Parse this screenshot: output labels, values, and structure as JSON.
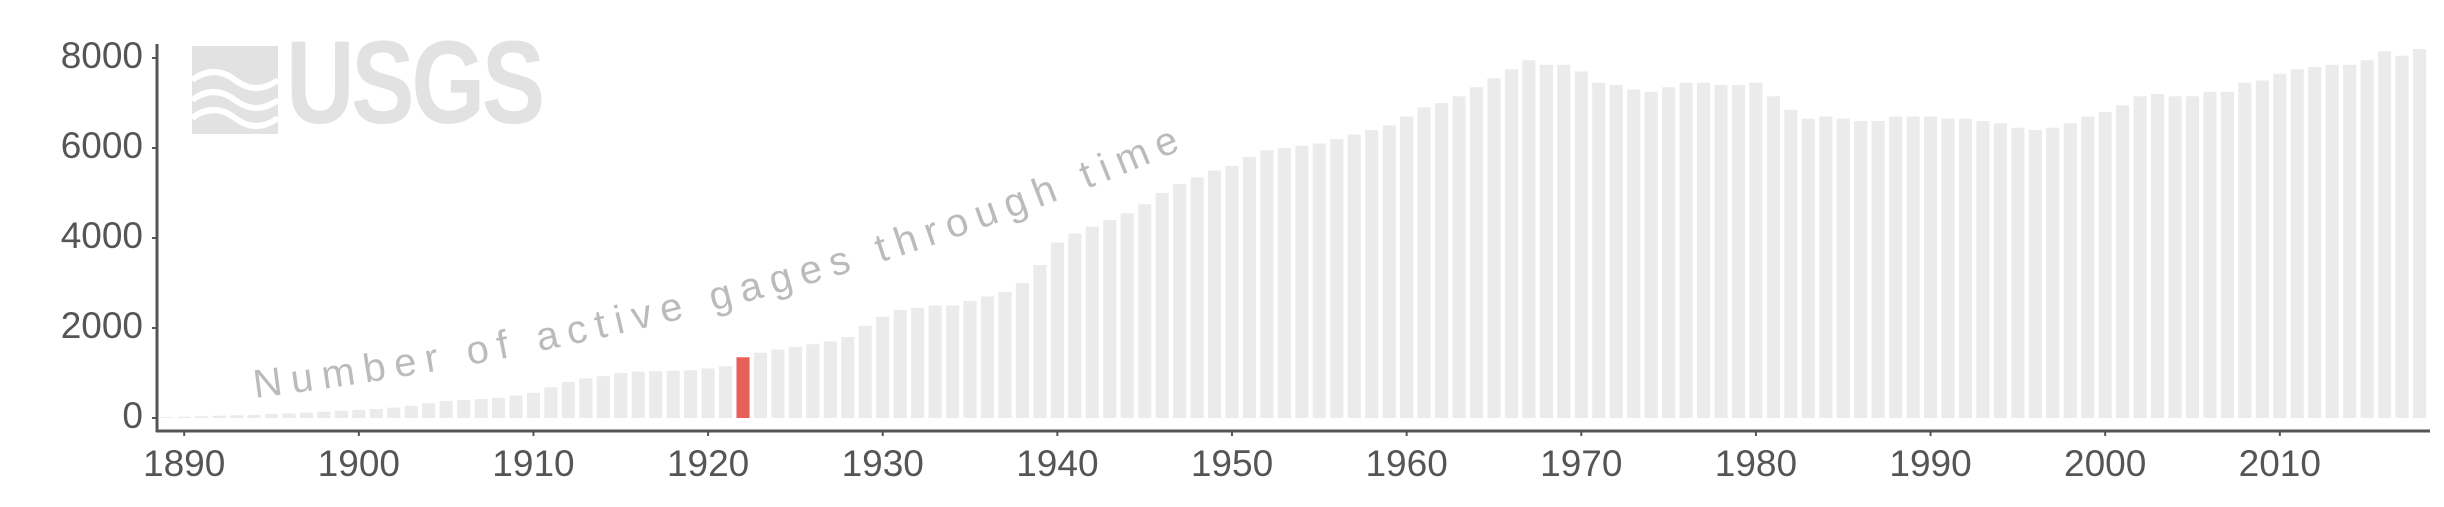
{
  "chart_data": {
    "type": "bar",
    "logo": "USGS",
    "annotation": "Number of active gages through time",
    "x": [
      1889,
      1890,
      1891,
      1892,
      1893,
      1894,
      1895,
      1896,
      1897,
      1898,
      1899,
      1900,
      1901,
      1902,
      1903,
      1904,
      1905,
      1906,
      1907,
      1908,
      1909,
      1910,
      1911,
      1912,
      1913,
      1914,
      1915,
      1916,
      1917,
      1918,
      1919,
      1920,
      1921,
      1922,
      1923,
      1924,
      1925,
      1926,
      1927,
      1928,
      1929,
      1930,
      1931,
      1932,
      1933,
      1934,
      1935,
      1936,
      1937,
      1938,
      1939,
      1940,
      1941,
      1942,
      1943,
      1944,
      1945,
      1946,
      1947,
      1948,
      1949,
      1950,
      1951,
      1952,
      1953,
      1954,
      1955,
      1956,
      1957,
      1958,
      1959,
      1960,
      1961,
      1962,
      1963,
      1964,
      1965,
      1966,
      1967,
      1968,
      1969,
      1970,
      1971,
      1972,
      1973,
      1974,
      1975,
      1976,
      1977,
      1978,
      1979,
      1980,
      1981,
      1982,
      1983,
      1984,
      1985,
      1986,
      1987,
      1988,
      1989,
      1990,
      1991,
      1992,
      1993,
      1994,
      1995,
      1996,
      1997,
      1998,
      1999,
      2000,
      2001,
      2002,
      2003,
      2004,
      2005,
      2006,
      2007,
      2008,
      2009,
      2010,
      2011,
      2012,
      2013,
      2014,
      2015,
      2016,
      2017,
      2018
    ],
    "values": [
      20,
      30,
      40,
      50,
      60,
      70,
      90,
      100,
      120,
      140,
      160,
      180,
      200,
      230,
      270,
      330,
      380,
      400,
      420,
      450,
      500,
      560,
      680,
      800,
      880,
      930,
      1000,
      1030,
      1040,
      1050,
      1060,
      1100,
      1150,
      1350,
      1450,
      1520,
      1580,
      1640,
      1700,
      1800,
      2050,
      2250,
      2400,
      2450,
      2500,
      2500,
      2600,
      2700,
      2800,
      3000,
      3400,
      3900,
      4100,
      4250,
      4400,
      4550,
      4750,
      5000,
      5200,
      5350,
      5500,
      5600,
      5800,
      5950,
      6000,
      6050,
      6100,
      6200,
      6300,
      6400,
      6500,
      6700,
      6900,
      7000,
      7150,
      7350,
      7550,
      7750,
      7950,
      7850,
      7850,
      7700,
      7450,
      7400,
      7300,
      7250,
      7350,
      7450,
      7450,
      7400,
      7400,
      7450,
      7150,
      6850,
      6650,
      6700,
      6650,
      6600,
      6600,
      6700,
      6700,
      6700,
      6650,
      6650,
      6600,
      6550,
      6450,
      6400,
      6450,
      6550,
      6700,
      6800,
      6950,
      7150,
      7200,
      7150,
      7150,
      7250,
      7250,
      7450,
      7500,
      7650,
      7750,
      7800,
      7850,
      7850,
      7950,
      8150,
      8050,
      8200
    ],
    "color": "#ebebeb",
    "highlight": 1922,
    "highlight_color": "#e8605a",
    "xlim": [
      1888.5,
      2019
    ],
    "xticks": [
      1890,
      1900,
      1910,
      1920,
      1930,
      1940,
      1950,
      1960,
      1970,
      1980,
      1990,
      2000,
      2010
    ],
    "ylim": [
      0,
      8000
    ],
    "yticks": [
      0,
      2000,
      4000,
      6000,
      8000
    ],
    "grid": false
  }
}
